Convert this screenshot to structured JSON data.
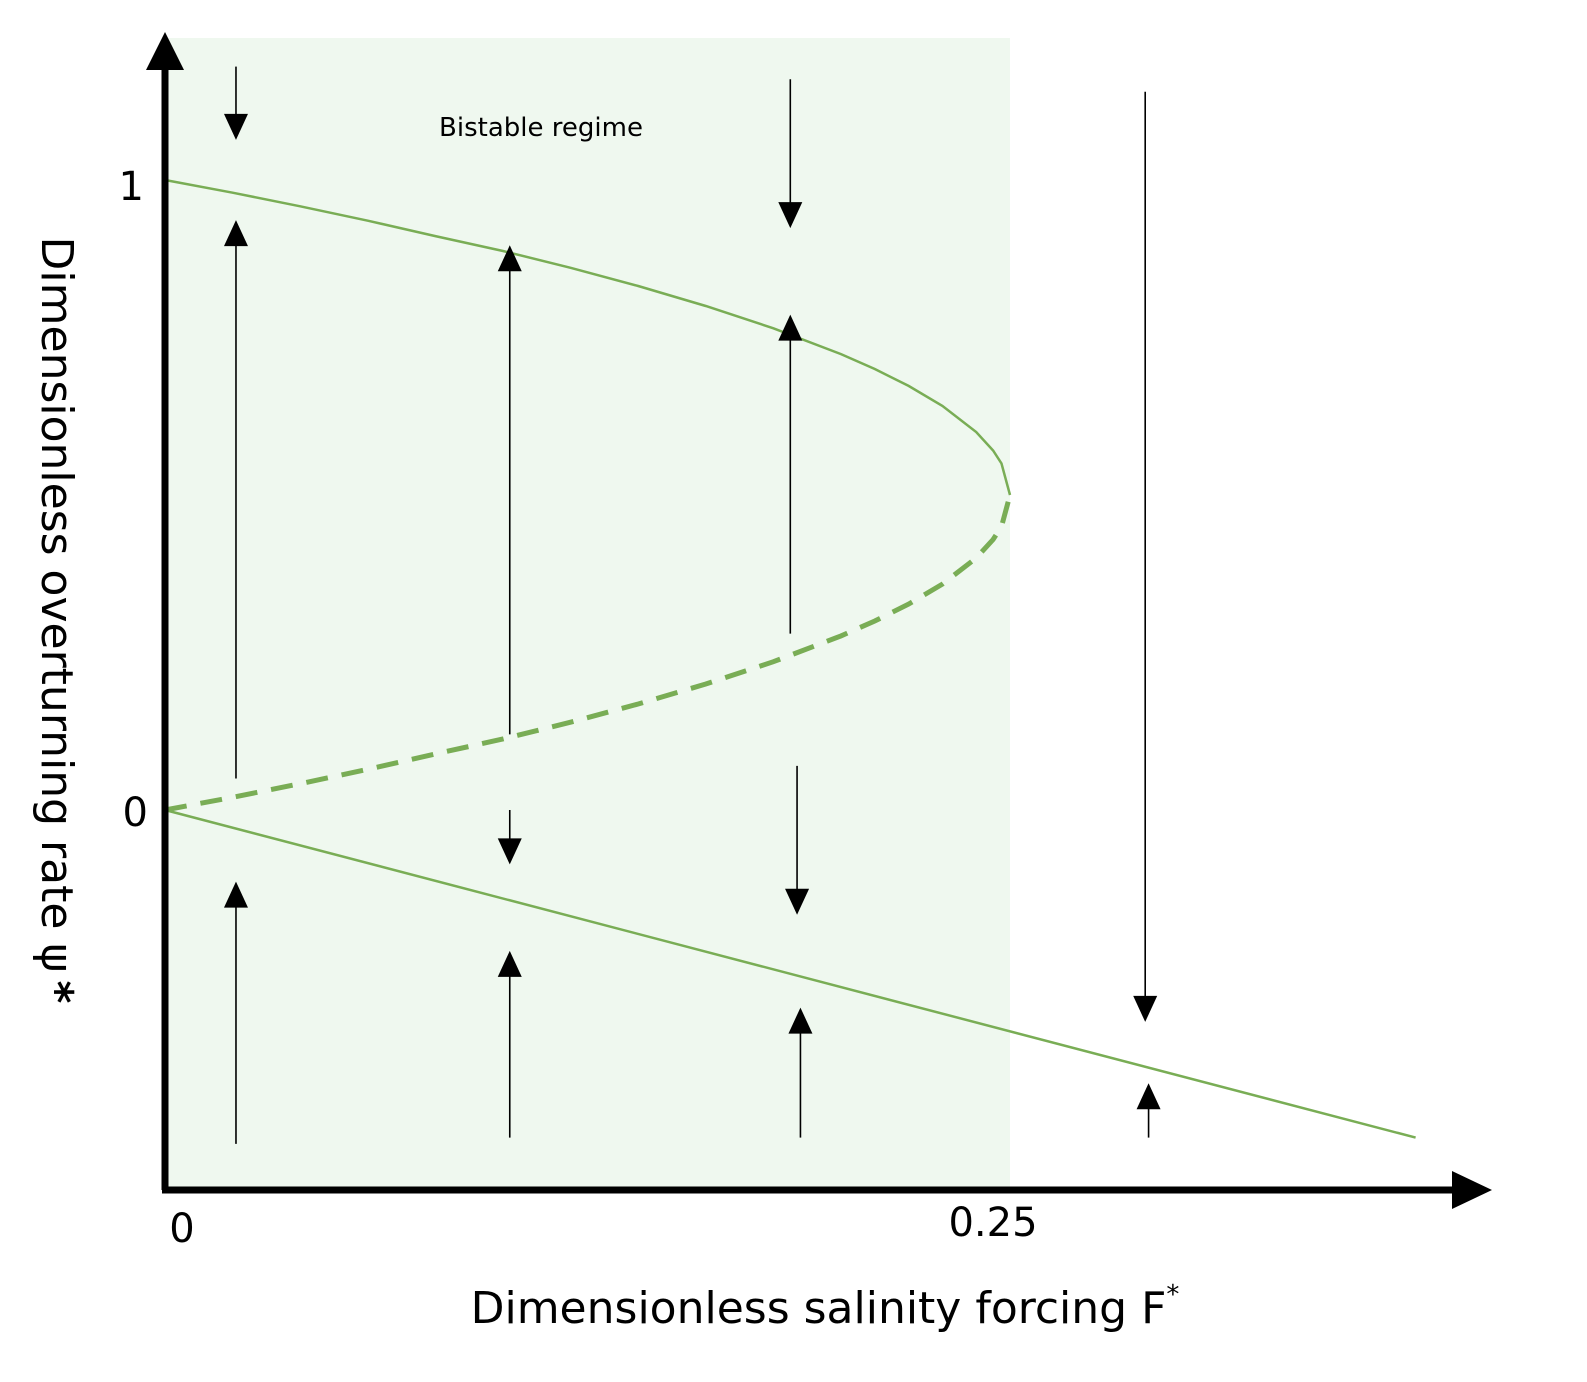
{
  "chart_data": {
    "type": "line",
    "title": "",
    "xlabel": "Dimensionless salinity forcing F",
    "xlabel_superscript": "*",
    "ylabel": "Dimensionless overturning rate ψ",
    "ylabel_superscript": "*",
    "x_ticks": [
      "0",
      "0.25"
    ],
    "y_ticks": [
      "0",
      "1"
    ],
    "xlim": [
      0,
      0.37
    ],
    "ylim": [
      -0.6,
      1.22
    ],
    "region": {
      "label": "Bistable regime",
      "x": [
        0,
        0.25
      ],
      "color": "#eff8ef"
    },
    "curve_color": "#79ad55",
    "series": [
      {
        "style": "solid",
        "x": [
          0,
          0.02,
          0.04,
          0.06,
          0.08,
          0.1,
          0.12,
          0.14,
          0.16,
          0.18,
          0.2,
          0.21,
          0.22,
          0.23,
          0.24,
          0.245,
          0.2475,
          0.25
        ],
        "y": [
          1.0,
          0.9798,
          0.9583,
          0.9354,
          0.911,
          0.8873,
          0.8606,
          0.8317,
          0.8,
          0.7646,
          0.7236,
          0.7,
          0.6732,
          0.6414,
          0.6,
          0.5707,
          0.55,
          0.5
        ]
      },
      {
        "style": "dashed",
        "x": [
          0,
          0.02,
          0.04,
          0.06,
          0.08,
          0.1,
          0.12,
          0.14,
          0.16,
          0.18,
          0.2,
          0.21,
          0.22,
          0.23,
          0.24,
          0.245,
          0.2475,
          0.25
        ],
        "y": [
          0.0,
          0.0202,
          0.0417,
          0.0646,
          0.089,
          0.1127,
          0.1394,
          0.1683,
          0.2,
          0.2354,
          0.2764,
          0.3,
          0.3268,
          0.3586,
          0.4,
          0.4293,
          0.45,
          0.5
        ]
      },
      {
        "style": "solid",
        "x": [
          0,
          0.37
        ],
        "y": [
          0.0,
          -0.52
        ]
      }
    ],
    "flow_arrows": [
      {
        "x": 0.021,
        "y_from": 1.18,
        "y_to": 1.07,
        "dir": "down"
      },
      {
        "x": 0.021,
        "y_from": 0.05,
        "y_to": 0.93,
        "dir": "up"
      },
      {
        "x": 0.021,
        "y_from": -0.53,
        "y_to": -0.12,
        "dir": "up"
      },
      {
        "x": 0.102,
        "y_from": 0.12,
        "y_to": 0.89,
        "dir": "up"
      },
      {
        "x": 0.102,
        "y_from": 0.0,
        "y_to": -0.08,
        "dir": "down"
      },
      {
        "x": 0.102,
        "y_from": -0.52,
        "y_to": -0.23,
        "dir": "up"
      },
      {
        "x": 0.185,
        "y_from": 1.16,
        "y_to": 0.93,
        "dir": "down"
      },
      {
        "x": 0.185,
        "y_from": 0.28,
        "y_to": 0.78,
        "dir": "up"
      },
      {
        "x": 0.187,
        "y_from": 0.07,
        "y_to": -0.16,
        "dir": "down"
      },
      {
        "x": 0.188,
        "y_from": -0.52,
        "y_to": -0.32,
        "dir": "up"
      },
      {
        "x": 0.29,
        "y_from": 1.14,
        "y_to": -0.33,
        "dir": "down"
      },
      {
        "x": 0.291,
        "y_from": -0.52,
        "y_to": -0.44,
        "dir": "up"
      }
    ]
  }
}
